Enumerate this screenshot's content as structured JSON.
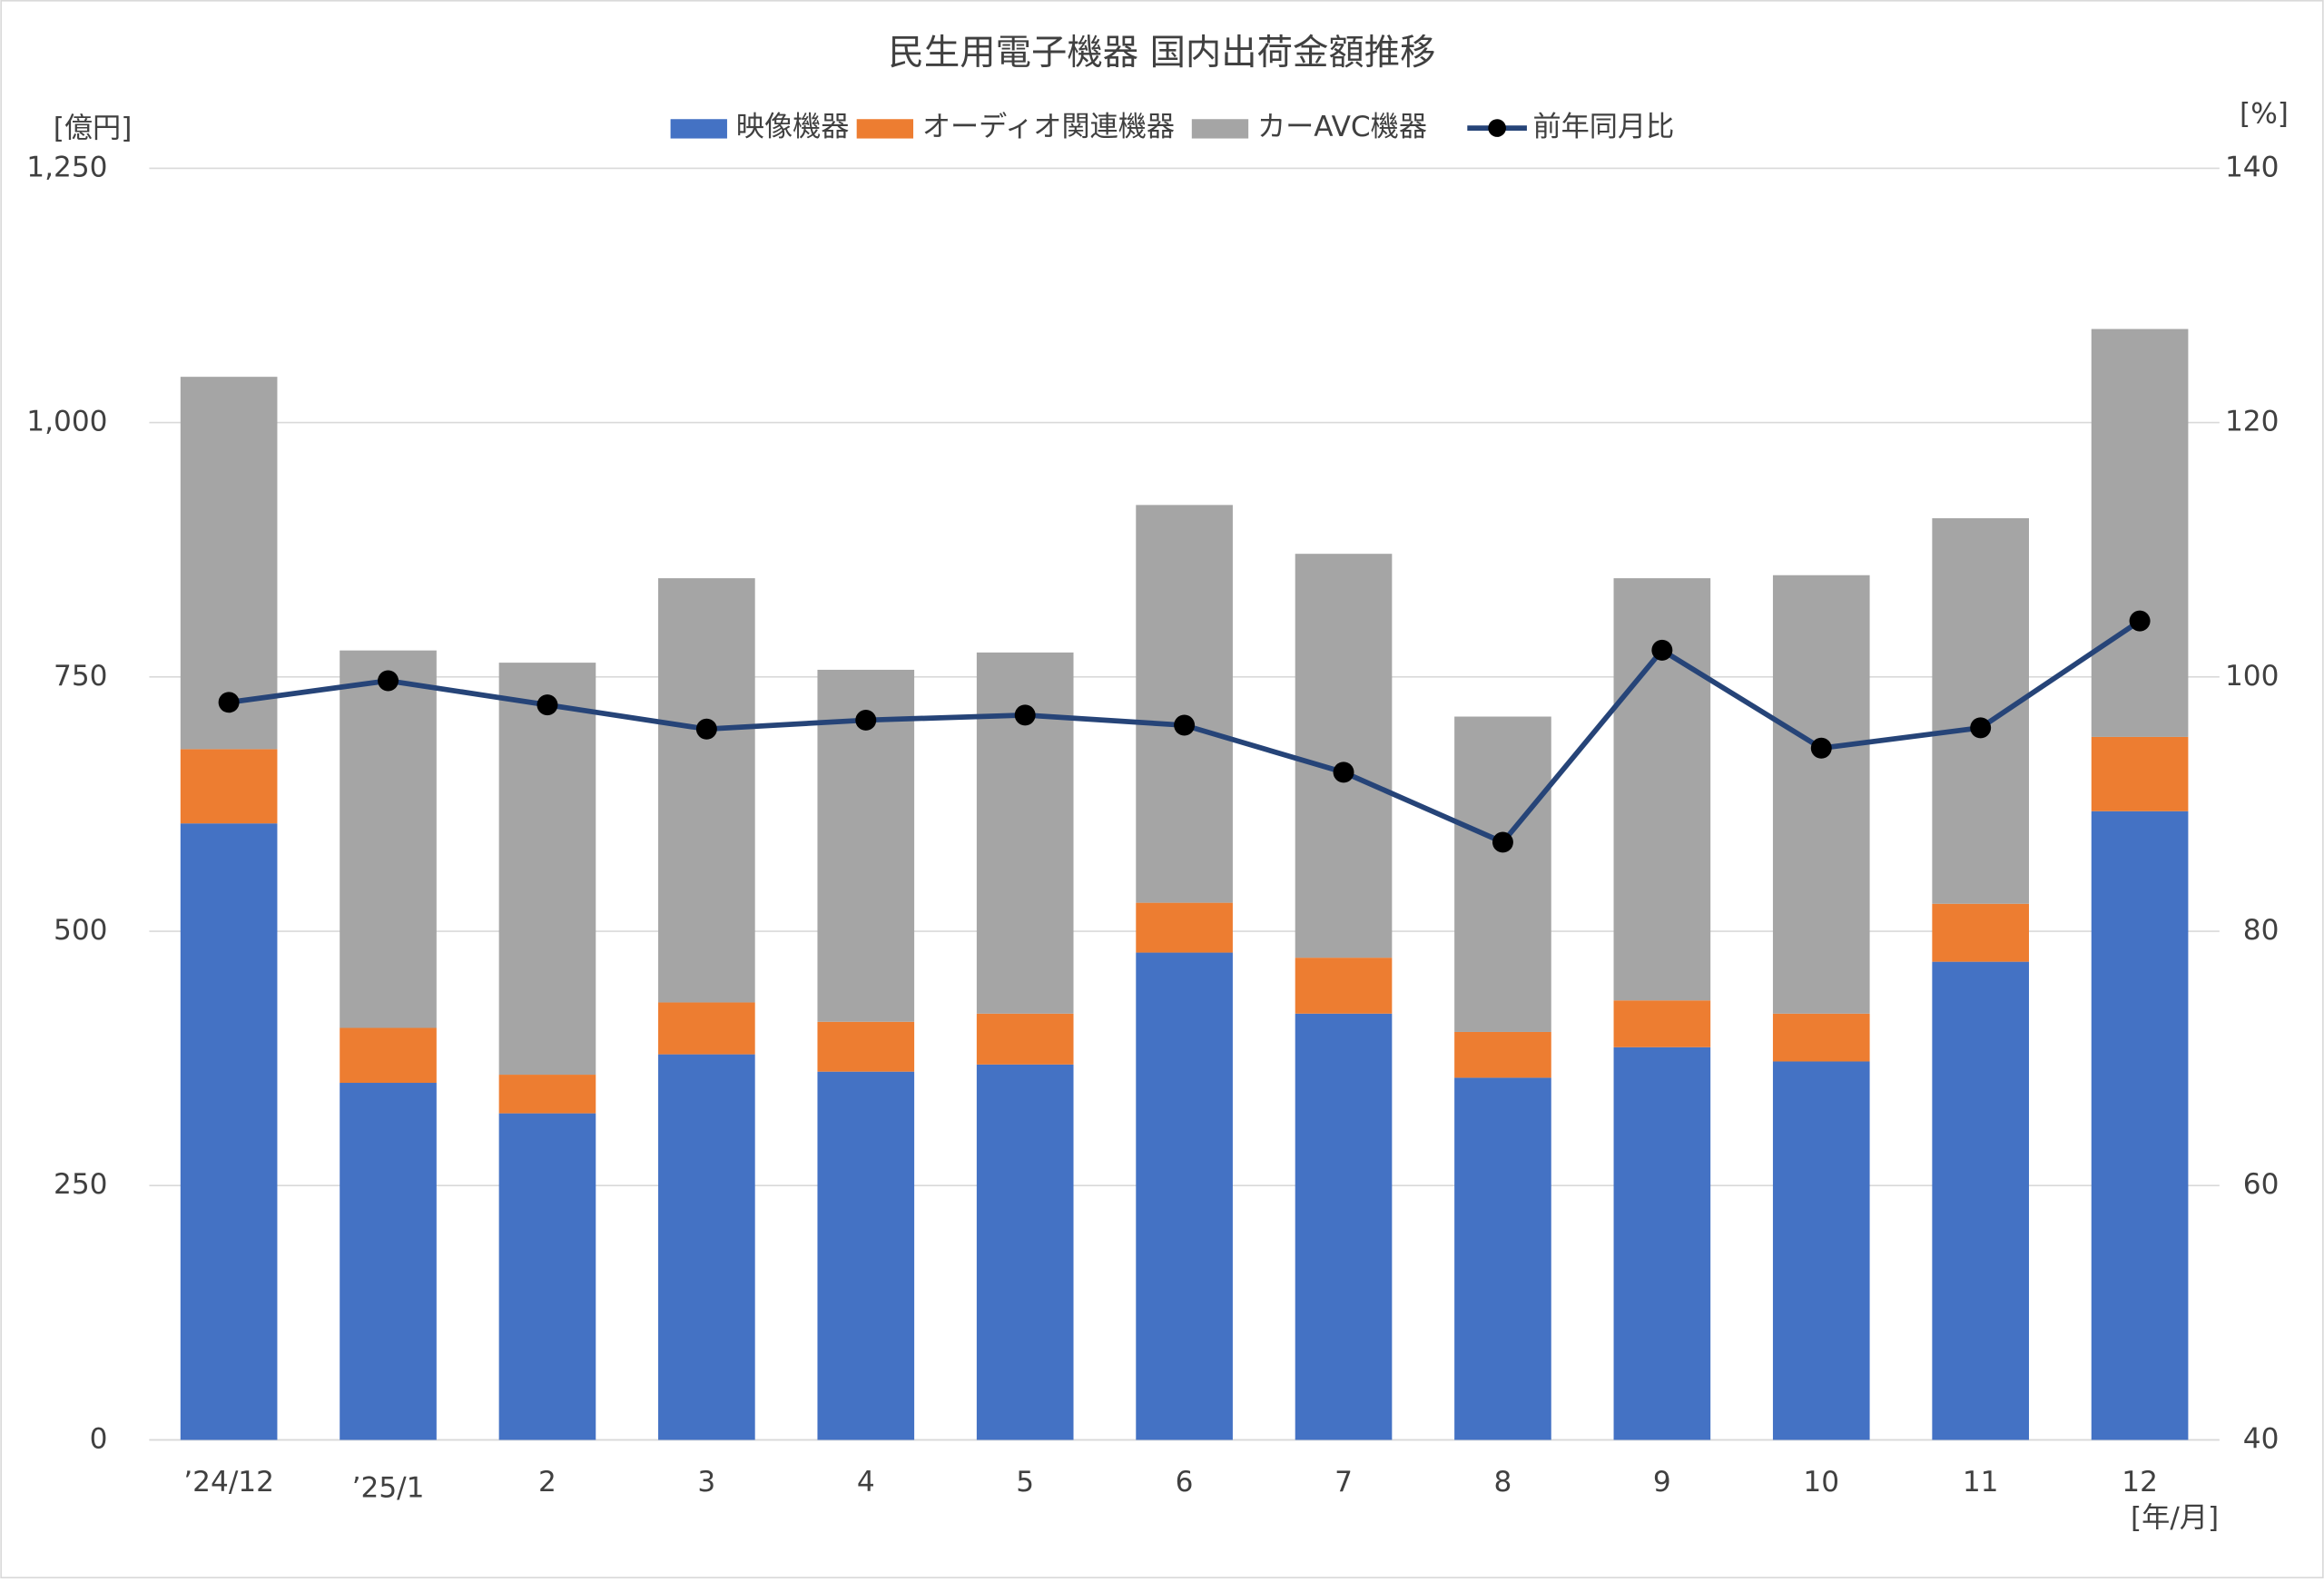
{
  "chart_data": {
    "type": "bar",
    "title": "民生用電子機器 国内出荷金額推移",
    "y_unit": "[億円]",
    "y2_unit": "[%]",
    "x_unit": "[年/月]",
    "categories": [
      "’24/12",
      "’25/1",
      "2",
      "3",
      "4",
      "5",
      "6",
      "7",
      "8",
      "9",
      "10",
      "11",
      "12"
    ],
    "stacked": true,
    "grid": true,
    "legend": "top",
    "series": [
      {
        "name": "映像機器",
        "color": "#4472c4",
        "values": [
          606,
          351,
          321,
          379,
          362,
          369,
          479,
          419,
          356,
          386,
          372,
          470,
          618
        ]
      },
      {
        "name": "オーディオ関連機器",
        "color": "#ed7d31",
        "values": [
          73,
          54,
          38,
          51,
          49,
          50,
          49,
          55,
          45,
          46,
          47,
          57,
          73
        ]
      },
      {
        "name": "カーAVC機器",
        "color": "#a5a5a5",
        "values": [
          366,
          371,
          405,
          417,
          346,
          355,
          391,
          397,
          310,
          415,
          431,
          379,
          401
        ]
      },
      {
        "name": "前年同月比",
        "color": "#264478",
        "type": "line",
        "axis": "y2",
        "values": [
          98.0,
          99.7,
          97.8,
          95.9,
          96.6,
          97.0,
          96.2,
          92.5,
          87.0,
          102.1,
          94.4,
          96.0,
          104.4
        ]
      }
    ],
    "ylim": [
      0,
      1250
    ],
    "yticks": [
      0,
      250,
      500,
      750,
      {
        "value": 1000,
        "label": "1,000"
      },
      {
        "value": 1250,
        "label": "1,250"
      }
    ],
    "y2lim": [
      40,
      140
    ],
    "y2ticks": [
      40,
      60,
      80,
      100,
      120,
      140
    ]
  }
}
